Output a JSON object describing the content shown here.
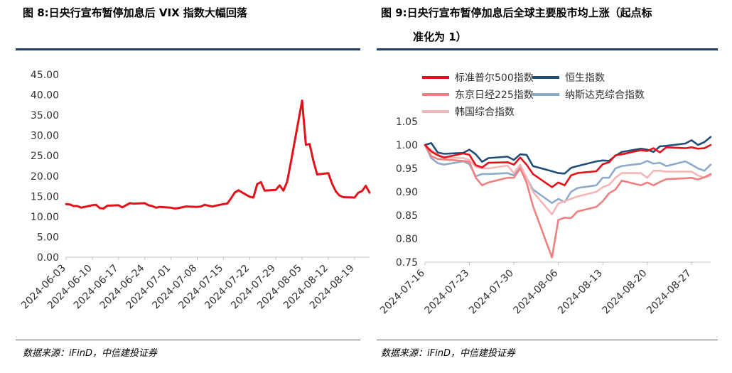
{
  "chart_data": [
    {
      "type": "line",
      "figure_label": "图  8:",
      "title": "日央行宣布暂停加息后 VIX 指数大幅回落",
      "source": "数据来源：iFinD，中信建投证券",
      "ylim": [
        0,
        45
      ],
      "yticks": [
        "0.00",
        "5.00",
        "10.00",
        "15.00",
        "20.00",
        "25.00",
        "30.00",
        "35.00",
        "40.00",
        "45.00"
      ],
      "xticks": [
        "2024-06-03",
        "2024-06-10",
        "2024-06-17",
        "2024-06-24",
        "2024-07-01",
        "2024-07-08",
        "2024-07-15",
        "2024-07-22",
        "2024-07-29",
        "2024-08-05",
        "2024-08-12",
        "2024-08-19"
      ],
      "x": [
        "2024-06-03",
        "2024-06-04",
        "2024-06-05",
        "2024-06-06",
        "2024-06-07",
        "2024-06-10",
        "2024-06-11",
        "2024-06-12",
        "2024-06-13",
        "2024-06-14",
        "2024-06-17",
        "2024-06-18",
        "2024-06-20",
        "2024-06-21",
        "2024-06-24",
        "2024-06-25",
        "2024-06-26",
        "2024-06-27",
        "2024-06-28",
        "2024-07-01",
        "2024-07-02",
        "2024-07-03",
        "2024-07-05",
        "2024-07-08",
        "2024-07-09",
        "2024-07-10",
        "2024-07-11",
        "2024-07-12",
        "2024-07-15",
        "2024-07-16",
        "2024-07-17",
        "2024-07-18",
        "2024-07-19",
        "2024-07-22",
        "2024-07-23",
        "2024-07-24",
        "2024-07-25",
        "2024-07-26",
        "2024-07-29",
        "2024-07-30",
        "2024-07-31",
        "2024-08-01",
        "2024-08-02",
        "2024-08-05",
        "2024-08-06",
        "2024-08-07",
        "2024-08-08",
        "2024-08-09",
        "2024-08-12",
        "2024-08-13",
        "2024-08-14",
        "2024-08-15",
        "2024-08-16",
        "2024-08-19",
        "2024-08-20",
        "2024-08-21",
        "2024-08-22",
        "2024-08-23"
      ],
      "series": [
        {
          "name": "VIX",
          "color": "#e3121a",
          "values": [
            13.1,
            13.0,
            12.6,
            12.6,
            12.2,
            12.8,
            12.9,
            12.1,
            12.0,
            12.7,
            12.8,
            12.3,
            13.3,
            13.2,
            13.3,
            12.8,
            12.6,
            12.2,
            12.4,
            12.2,
            12.0,
            12.1,
            12.5,
            12.4,
            12.5,
            12.9,
            12.7,
            12.5,
            13.1,
            13.2,
            14.5,
            15.9,
            16.5,
            14.9,
            14.7,
            18.0,
            18.5,
            16.4,
            16.6,
            17.7,
            16.4,
            18.6,
            23.4,
            38.6,
            27.7,
            27.9,
            23.8,
            20.4,
            20.7,
            18.1,
            16.2,
            15.2,
            14.8,
            14.7,
            15.9,
            16.3,
            17.6,
            15.9
          ]
        }
      ]
    },
    {
      "type": "line",
      "figure_label": "图  9:",
      "title_line1": "日央行宣布暂停加息后全球主要股市均上涨（起点标",
      "title_line2": "准化为 1）",
      "source": "数据来源：iFinD，中信建投证券",
      "ylim": [
        0.75,
        1.05
      ],
      "yticks": [
        "0.75",
        "0.80",
        "0.85",
        "0.90",
        "0.95",
        "1.00",
        "1.05"
      ],
      "xticks": [
        "2024-07-16",
        "2024-07-23",
        "2024-07-30",
        "2024-08-06",
        "2024-08-13",
        "2024-08-20",
        "2024-08-27"
      ],
      "x": [
        "2024-07-16",
        "2024-07-17",
        "2024-07-18",
        "2024-07-19",
        "2024-07-22",
        "2024-07-23",
        "2024-07-24",
        "2024-07-25",
        "2024-07-26",
        "2024-07-29",
        "2024-07-30",
        "2024-07-31",
        "2024-08-01",
        "2024-08-02",
        "2024-08-05",
        "2024-08-06",
        "2024-08-07",
        "2024-08-08",
        "2024-08-09",
        "2024-08-12",
        "2024-08-13",
        "2024-08-14",
        "2024-08-15",
        "2024-08-16",
        "2024-08-19",
        "2024-08-20",
        "2024-08-21",
        "2024-08-22",
        "2024-08-23",
        "2024-08-26",
        "2024-08-27",
        "2024-08-28",
        "2024-08-29",
        "2024-08-30"
      ],
      "series": [
        {
          "name": "标准普尔500指数",
          "color": "#e3121a",
          "values": [
            1.0,
            0.986,
            0.978,
            0.973,
            0.982,
            0.979,
            0.957,
            0.952,
            0.962,
            0.963,
            0.958,
            0.973,
            0.958,
            0.938,
            0.91,
            0.92,
            0.914,
            0.935,
            0.94,
            0.944,
            0.959,
            0.963,
            0.978,
            0.98,
            0.989,
            0.987,
            0.993,
            0.984,
            0.995,
            0.993,
            0.995,
            0.992,
            0.993,
            1.0
          ]
        },
        {
          "name": "恒生指数",
          "color": "#1f4e79",
          "values": [
            1.0,
            1.004,
            0.984,
            0.981,
            0.983,
            0.99,
            0.98,
            0.964,
            0.972,
            0.975,
            0.968,
            0.98,
            0.979,
            0.955,
            0.944,
            0.94,
            0.939,
            0.951,
            0.955,
            0.965,
            0.967,
            0.966,
            0.977,
            0.985,
            0.992,
            0.99,
            0.985,
            0.997,
            0.998,
            1.003,
            1.01,
            1.0,
            1.006,
            1.017
          ]
        },
        {
          "name": "东京日经225指数",
          "color": "#f08080",
          "values": [
            1.0,
            0.976,
            0.97,
            0.969,
            0.966,
            0.964,
            0.93,
            0.914,
            0.92,
            0.93,
            0.93,
            0.95,
            0.92,
            0.87,
            0.76,
            0.84,
            0.845,
            0.844,
            0.858,
            0.868,
            0.88,
            0.897,
            0.905,
            0.924,
            0.914,
            0.92,
            0.914,
            0.921,
            0.927,
            0.929,
            0.93,
            0.926,
            0.931,
            0.938
          ]
        },
        {
          "name": "纳斯达克综合指数",
          "color": "#8eaacb",
          "values": [
            1.0,
            0.972,
            0.961,
            0.958,
            0.965,
            0.959,
            0.933,
            0.938,
            0.938,
            0.94,
            0.935,
            0.952,
            0.93,
            0.905,
            0.876,
            0.885,
            0.878,
            0.9,
            0.908,
            0.914,
            0.93,
            0.93,
            0.95,
            0.955,
            0.96,
            0.966,
            0.96,
            0.962,
            0.955,
            0.965,
            0.958,
            0.95,
            0.945,
            0.958
          ]
        },
        {
          "name": "韩国综合指数",
          "color": "#f4b6b6",
          "values": [
            1.0,
            0.988,
            0.98,
            0.973,
            0.972,
            0.968,
            0.953,
            0.95,
            0.95,
            0.956,
            0.94,
            0.958,
            0.93,
            0.9,
            0.852,
            0.875,
            0.88,
            0.885,
            0.89,
            0.9,
            0.91,
            0.915,
            0.93,
            0.94,
            0.94,
            0.93,
            0.945,
            0.945,
            0.943,
            0.943,
            0.943,
            0.935,
            0.93,
            0.935
          ]
        }
      ]
    }
  ]
}
